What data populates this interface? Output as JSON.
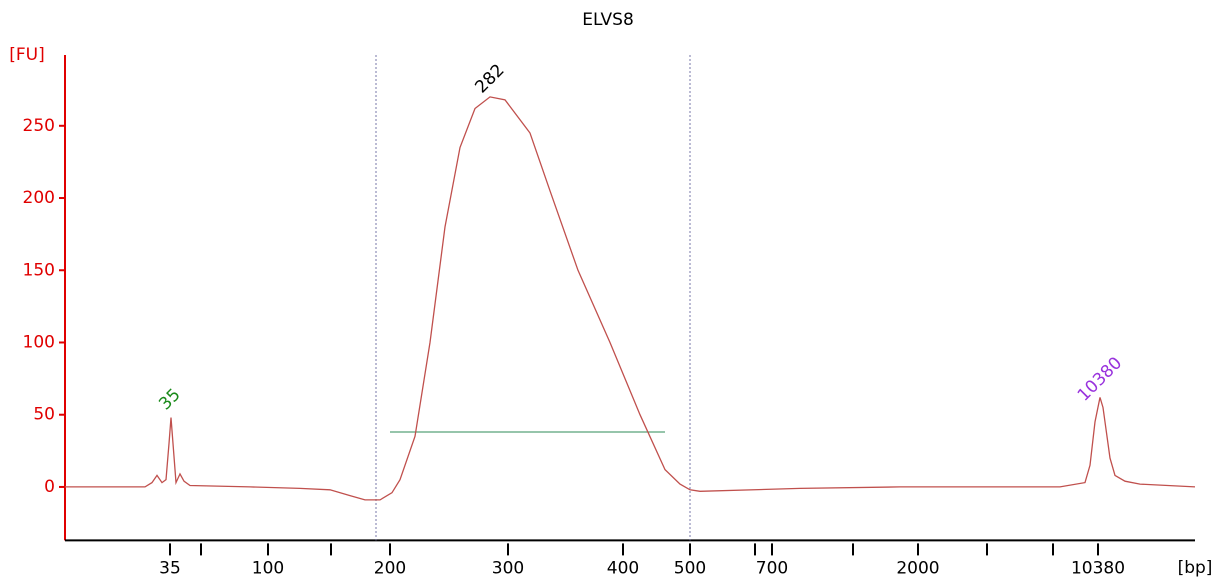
{
  "chart_data": {
    "type": "line",
    "title": "ELVS8",
    "y_label": "[FU]",
    "x_label": "[bp]",
    "axis_color": "#e00000",
    "xlim": [
      0,
      1130
    ],
    "ylim": [
      -37,
      299
    ],
    "yticks": [
      0,
      50,
      100,
      150,
      200,
      250
    ],
    "xticks": [
      {
        "value": 105,
        "label": "35"
      },
      {
        "value": 203,
        "label": "100"
      },
      {
        "value": 325,
        "label": "200"
      },
      {
        "value": 443,
        "label": "300"
      },
      {
        "value": 558,
        "label": "400"
      },
      {
        "value": 625,
        "label": "500"
      },
      {
        "value": 707,
        "label": "700"
      },
      {
        "value": 853,
        "label": "2000"
      },
      {
        "value": 1033,
        "label": "10380"
      }
    ],
    "xminorticks": [
      136,
      266,
      690,
      788,
      922,
      988
    ],
    "series": [
      {
        "color": "#c0504d",
        "x": [
          0,
          80,
          87,
          92,
          97,
          101,
          104,
          106,
          108,
          111,
          115,
          119,
          125,
          185,
          235,
          265,
          285,
          300,
          315,
          327,
          335,
          350,
          365,
          380,
          395,
          410,
          425,
          440,
          465,
          485,
          513,
          545,
          575,
          600,
          615,
          625,
          635,
          735,
          835,
          995,
          1020,
          1025,
          1030,
          1035,
          1038,
          1041,
          1045,
          1050,
          1060,
          1075,
          1130
        ],
        "values": [
          0,
          0,
          3,
          8,
          3,
          5,
          30,
          48,
          30,
          3,
          9,
          4,
          1,
          0,
          -1,
          -2,
          -6,
          -9,
          -9,
          -4,
          5,
          35,
          100,
          180,
          235,
          262,
          270,
          268,
          245,
          205,
          150,
          100,
          50,
          12,
          2,
          -2,
          -3,
          -1,
          0,
          0,
          3,
          15,
          45,
          62,
          55,
          40,
          20,
          8,
          4,
          2,
          0
        ]
      }
    ],
    "peak_labels": [
      {
        "text": "35",
        "x": 105,
        "y": 48,
        "color": "#1a8a1a"
      },
      {
        "text": "282",
        "x": 425,
        "y": 270,
        "color": "#000000"
      },
      {
        "text": "10380",
        "x": 1035,
        "y": 62,
        "color": "#9933dd"
      }
    ],
    "region_markers": [
      311,
      625
    ],
    "region_level": {
      "y": 38,
      "x": [
        325,
        600
      ],
      "color": "#2e8b57"
    }
  }
}
